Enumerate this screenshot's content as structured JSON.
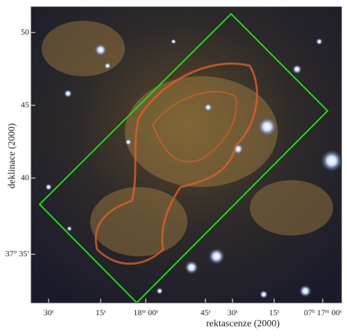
{
  "figure": {
    "x_label": "rektascenze (2000)",
    "y_label": "deklinace (2000)",
    "x_ticks": [
      "30ˢ",
      "15ˢ",
      "18ᵐ 00ˢ",
      "45ˢ",
      "30ˢ",
      "15ˢ",
      "07ʰ 17ᵐ 00ˢ"
    ],
    "y_ticks": [
      "50",
      "45",
      "40",
      "37° 35′"
    ]
  }
}
